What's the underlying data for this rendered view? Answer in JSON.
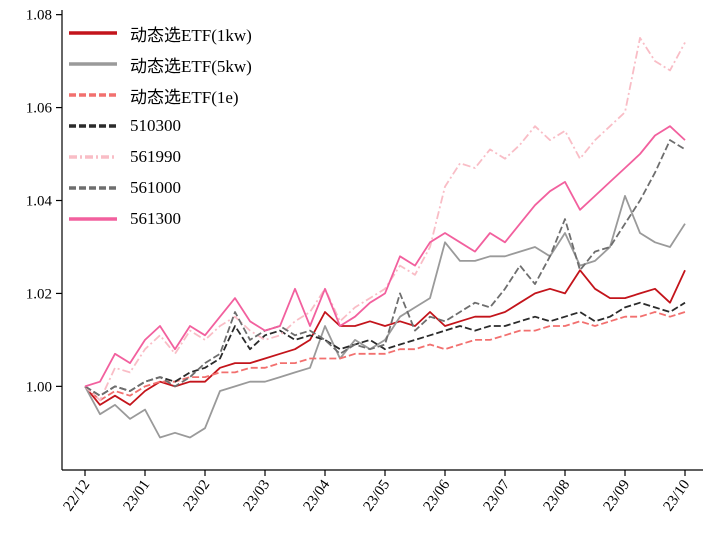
{
  "chart_data": {
    "type": "line",
    "title": "",
    "xlabel": "",
    "ylabel": "",
    "grid": false,
    "legend_position": "top-left",
    "ylim": [
      0.982,
      1.081
    ],
    "y_tick_values": [
      1.0,
      1.02,
      1.04,
      1.06,
      1.08
    ],
    "y_tick_labels": [
      "1.00",
      "1.02",
      "1.04",
      "1.06",
      "1.08"
    ],
    "x_tick_labels": [
      "22/12",
      "23/01",
      "23/02",
      "23/03",
      "23/04",
      "23/05",
      "23/06",
      "23/07",
      "23/08",
      "23/09",
      "23/10"
    ],
    "x_tick_step_months": 1,
    "x_step_months": 0.25,
    "axis_color": "#000000",
    "series": [
      {
        "name": "动态选ETF(1kw)",
        "color": "#c3141b",
        "style": "solid",
        "values": [
          1.0,
          0.996,
          0.998,
          0.996,
          0.999,
          1.001,
          1.0,
          1.001,
          1.001,
          1.004,
          1.005,
          1.005,
          1.006,
          1.007,
          1.008,
          1.01,
          1.016,
          1.013,
          1.013,
          1.014,
          1.013,
          1.014,
          1.013,
          1.016,
          1.013,
          1.014,
          1.015,
          1.015,
          1.016,
          1.018,
          1.02,
          1.021,
          1.02,
          1.025,
          1.021,
          1.019,
          1.019,
          1.02,
          1.021,
          1.018,
          1.025
        ]
      },
      {
        "name": "动态选ETF(5kw)",
        "color": "#9a9a9a",
        "style": "solid",
        "values": [
          1.0,
          0.994,
          0.996,
          0.993,
          0.995,
          0.989,
          0.99,
          0.989,
          0.991,
          0.999,
          1.0,
          1.001,
          1.001,
          1.002,
          1.003,
          1.004,
          1.013,
          1.006,
          1.01,
          1.008,
          1.01,
          1.015,
          1.017,
          1.019,
          1.031,
          1.027,
          1.027,
          1.028,
          1.028,
          1.029,
          1.03,
          1.028,
          1.033,
          1.026,
          1.027,
          1.03,
          1.041,
          1.033,
          1.031,
          1.03,
          1.035
        ]
      },
      {
        "name": "动态选ETF(1e)",
        "color": "#f2706f",
        "style": "dashed",
        "values": [
          1.0,
          0.997,
          0.999,
          0.998,
          1.0,
          1.001,
          1.001,
          1.002,
          1.002,
          1.003,
          1.003,
          1.004,
          1.004,
          1.005,
          1.005,
          1.006,
          1.006,
          1.006,
          1.007,
          1.007,
          1.007,
          1.008,
          1.008,
          1.009,
          1.008,
          1.009,
          1.01,
          1.01,
          1.011,
          1.012,
          1.012,
          1.013,
          1.013,
          1.014,
          1.013,
          1.014,
          1.015,
          1.015,
          1.016,
          1.015,
          1.016
        ]
      },
      {
        "name": "510300",
        "color": "#2b2b2b",
        "style": "dashed",
        "values": [
          1.0,
          0.998,
          1.0,
          0.999,
          1.001,
          1.002,
          1.001,
          1.003,
          1.004,
          1.006,
          1.013,
          1.008,
          1.011,
          1.012,
          1.01,
          1.011,
          1.01,
          1.008,
          1.009,
          1.01,
          1.008,
          1.009,
          1.01,
          1.011,
          1.012,
          1.013,
          1.012,
          1.013,
          1.013,
          1.014,
          1.015,
          1.014,
          1.015,
          1.016,
          1.014,
          1.015,
          1.017,
          1.018,
          1.017,
          1.016,
          1.018
        ]
      },
      {
        "name": "561990",
        "color": "#f9bdc6",
        "style": "dashdot",
        "values": [
          1.0,
          0.997,
          1.004,
          1.003,
          1.008,
          1.011,
          1.007,
          1.012,
          1.01,
          1.013,
          1.015,
          1.012,
          1.01,
          1.011,
          1.014,
          1.016,
          1.021,
          1.014,
          1.017,
          1.019,
          1.021,
          1.026,
          1.024,
          1.03,
          1.043,
          1.048,
          1.047,
          1.051,
          1.049,
          1.052,
          1.056,
          1.053,
          1.055,
          1.049,
          1.053,
          1.056,
          1.059,
          1.075,
          1.07,
          1.068,
          1.074
        ]
      },
      {
        "name": "561000",
        "color": "#6e6e6e",
        "style": "dashed",
        "values": [
          1.0,
          0.998,
          1.0,
          0.999,
          1.001,
          1.002,
          1.0,
          1.002,
          1.005,
          1.007,
          1.016,
          1.01,
          1.012,
          1.013,
          1.011,
          1.012,
          1.01,
          1.007,
          1.009,
          1.008,
          1.009,
          1.02,
          1.012,
          1.015,
          1.014,
          1.016,
          1.018,
          1.017,
          1.021,
          1.026,
          1.022,
          1.028,
          1.036,
          1.025,
          1.029,
          1.03,
          1.035,
          1.04,
          1.046,
          1.053,
          1.051
        ]
      },
      {
        "name": "561300",
        "color": "#f2609e",
        "style": "solid",
        "values": [
          1.0,
          1.001,
          1.007,
          1.005,
          1.01,
          1.013,
          1.008,
          1.013,
          1.011,
          1.015,
          1.019,
          1.014,
          1.012,
          1.013,
          1.021,
          1.013,
          1.021,
          1.013,
          1.015,
          1.018,
          1.02,
          1.028,
          1.026,
          1.031,
          1.033,
          1.031,
          1.029,
          1.033,
          1.031,
          1.035,
          1.039,
          1.042,
          1.044,
          1.038,
          1.041,
          1.044,
          1.047,
          1.05,
          1.054,
          1.056,
          1.053
        ]
      }
    ]
  }
}
